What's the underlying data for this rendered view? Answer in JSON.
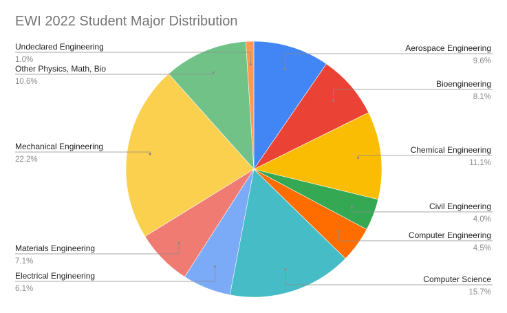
{
  "chart_data": {
    "type": "pie",
    "title": "EWI 2022 Student Major Distribution",
    "slices": [
      {
        "label": "Aerospace Engineering",
        "value": 9.6,
        "pct_label": "9.6%",
        "color": "#4285f4"
      },
      {
        "label": "Bioengineering",
        "value": 8.1,
        "pct_label": "8.1%",
        "color": "#ea4335"
      },
      {
        "label": "Chemical Engineering",
        "value": 11.1,
        "pct_label": "11.1%",
        "color": "#fbbc04"
      },
      {
        "label": "Civil Engineering",
        "value": 4.0,
        "pct_label": "4.0%",
        "color": "#34a853"
      },
      {
        "label": "Computer Engineering",
        "value": 4.5,
        "pct_label": "4.5%",
        "color": "#ff6d01"
      },
      {
        "label": "Computer Science",
        "value": 15.7,
        "pct_label": "15.7%",
        "color": "#46bdc6"
      },
      {
        "label": "Electrical Engineering",
        "value": 6.1,
        "pct_label": "6.1%",
        "color": "#7baaf7"
      },
      {
        "label": "Materials Engineering",
        "value": 7.1,
        "pct_label": "7.1%",
        "color": "#f07b72"
      },
      {
        "label": "Mechanical Engineering",
        "value": 22.2,
        "pct_label": "22.2%",
        "color": "#fcd04f"
      },
      {
        "label": "Other Physics, Math, Bio",
        "value": 10.6,
        "pct_label": "10.6%",
        "color": "#71c287"
      },
      {
        "label": "Undeclared Engineering",
        "value": 1.0,
        "pct_label": "1.0%",
        "color": "#ff994d"
      }
    ],
    "legend": "none",
    "label_style": "callout"
  }
}
